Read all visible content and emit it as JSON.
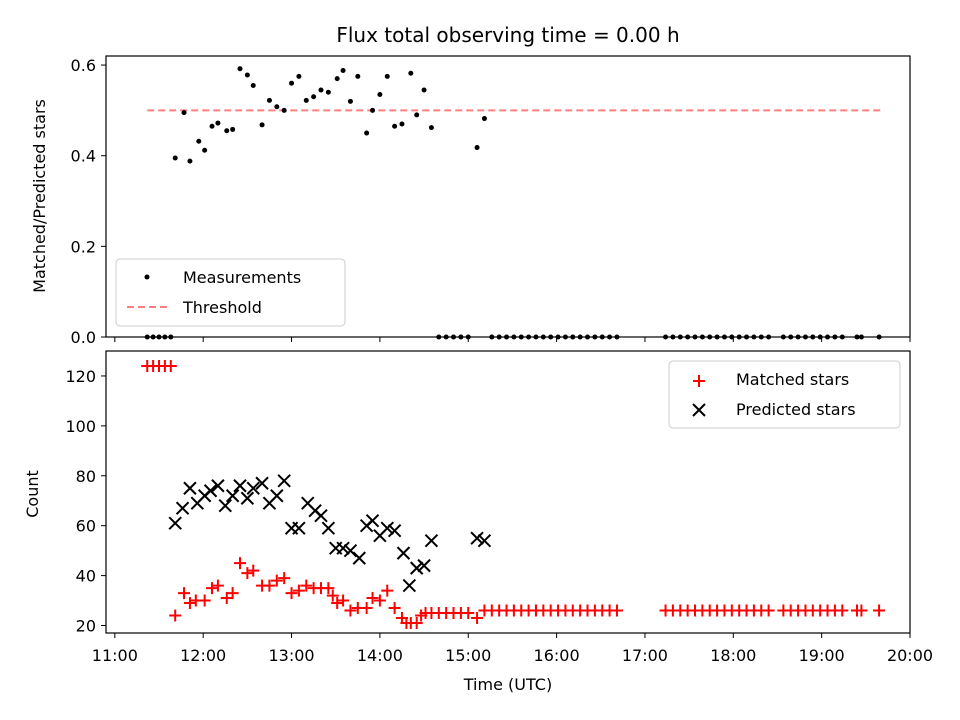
{
  "chart_data": [
    {
      "type": "scatter",
      "title": "Flux total observing time = 0.00 h",
      "xlabel": "",
      "ylabel": "Matched/Predicted stars",
      "xlim": [
        "10:54",
        "20:00"
      ],
      "ylim": [
        0,
        0.62
      ],
      "yticks": [
        "0.0",
        "0.2",
        "0.4",
        "0.6"
      ],
      "legend": {
        "placement": "lower-left",
        "entries": [
          "Measurements",
          "Threshold"
        ]
      },
      "colors": {
        "measurements": "#000000",
        "threshold": "#ff7f7f"
      },
      "threshold": {
        "name": "Threshold",
        "value": 0.5,
        "x_start": "11:22",
        "x_end": "19:40"
      },
      "series": [
        {
          "name": "Measurements",
          "points": [
            [
              "11:41",
              0.395
            ],
            [
              "11:47",
              0.495
            ],
            [
              "11:51",
              0.388
            ],
            [
              "11:57",
              0.432
            ],
            [
              "12:01",
              0.412
            ],
            [
              "12:06",
              0.465
            ],
            [
              "12:10",
              0.472
            ],
            [
              "12:16",
              0.455
            ],
            [
              "12:20",
              0.458
            ],
            [
              "12:25",
              0.592
            ],
            [
              "12:30",
              0.578
            ],
            [
              "12:34",
              0.555
            ],
            [
              "12:40",
              0.468
            ],
            [
              "12:45",
              0.522
            ],
            [
              "12:50",
              0.508
            ],
            [
              "12:55",
              0.5
            ],
            [
              "13:00",
              0.56
            ],
            [
              "13:05",
              0.575
            ],
            [
              "13:10",
              0.522
            ],
            [
              "13:15",
              0.53
            ],
            [
              "13:20",
              0.545
            ],
            [
              "13:25",
              0.54
            ],
            [
              "13:31",
              0.57
            ],
            [
              "13:35",
              0.588
            ],
            [
              "13:40",
              0.52
            ],
            [
              "13:45",
              0.575
            ],
            [
              "13:51",
              0.45
            ],
            [
              "13:55",
              0.5
            ],
            [
              "14:00",
              0.535
            ],
            [
              "14:05",
              0.575
            ],
            [
              "14:10",
              0.465
            ],
            [
              "14:15",
              0.47
            ],
            [
              "14:21",
              0.582
            ],
            [
              "14:25",
              0.49
            ],
            [
              "14:30",
              0.545
            ],
            [
              "14:35",
              0.462
            ],
            [
              "15:06",
              0.418
            ],
            [
              "15:11",
              0.482
            ],
            [
              "11:22",
              0
            ],
            [
              "11:26",
              0
            ],
            [
              "11:30",
              0
            ],
            [
              "11:34",
              0
            ],
            [
              "11:38",
              0
            ],
            [
              "14:40",
              0
            ],
            [
              "14:45",
              0
            ],
            [
              "14:50",
              0
            ],
            [
              "14:55",
              0
            ],
            [
              "15:00",
              0
            ],
            [
              "15:16",
              0
            ],
            [
              "15:21",
              0
            ],
            [
              "15:26",
              0
            ],
            [
              "15:31",
              0
            ],
            [
              "15:36",
              0
            ],
            [
              "15:41",
              0
            ],
            [
              "15:46",
              0
            ],
            [
              "15:51",
              0
            ],
            [
              "15:56",
              0
            ],
            [
              "16:01",
              0
            ],
            [
              "16:06",
              0
            ],
            [
              "16:11",
              0
            ],
            [
              "16:16",
              0
            ],
            [
              "16:21",
              0
            ],
            [
              "16:26",
              0
            ],
            [
              "16:31",
              0
            ],
            [
              "16:36",
              0
            ],
            [
              "16:41",
              0
            ],
            [
              "17:14",
              0
            ],
            [
              "17:19",
              0
            ],
            [
              "17:24",
              0
            ],
            [
              "17:29",
              0
            ],
            [
              "17:34",
              0
            ],
            [
              "17:39",
              0
            ],
            [
              "17:44",
              0
            ],
            [
              "17:49",
              0
            ],
            [
              "17:54",
              0
            ],
            [
              "17:59",
              0
            ],
            [
              "18:04",
              0
            ],
            [
              "18:09",
              0
            ],
            [
              "18:14",
              0
            ],
            [
              "18:19",
              0
            ],
            [
              "18:24",
              0
            ],
            [
              "18:34",
              0
            ],
            [
              "18:39",
              0
            ],
            [
              "18:44",
              0
            ],
            [
              "18:49",
              0
            ],
            [
              "18:54",
              0
            ],
            [
              "18:59",
              0
            ],
            [
              "19:04",
              0
            ],
            [
              "19:09",
              0
            ],
            [
              "19:14",
              0
            ],
            [
              "19:24",
              0
            ],
            [
              "19:27",
              0
            ],
            [
              "19:39",
              0
            ]
          ]
        }
      ]
    },
    {
      "type": "scatter",
      "title": "",
      "xlabel": "Time (UTC)",
      "ylabel": "Count",
      "xlim": [
        "10:54",
        "20:00"
      ],
      "ylim": [
        17,
        130
      ],
      "xticks": [
        "11:00",
        "12:00",
        "13:00",
        "14:00",
        "15:00",
        "16:00",
        "17:00",
        "18:00",
        "19:00",
        "20:00"
      ],
      "yticks": [
        "20",
        "40",
        "60",
        "80",
        "100",
        "120"
      ],
      "legend": {
        "placement": "top-right",
        "entries": [
          "Matched stars",
          "Predicted stars"
        ]
      },
      "colors": {
        "matched": "#ff0000",
        "predicted": "#000000"
      },
      "series": [
        {
          "name": "Matched stars",
          "marker": "plus",
          "points": [
            [
              "11:22",
              124
            ],
            [
              "11:26",
              124
            ],
            [
              "11:30",
              124
            ],
            [
              "11:34",
              124
            ],
            [
              "11:38",
              124
            ],
            [
              "11:41",
              24
            ],
            [
              "11:47",
              33
            ],
            [
              "11:51",
              29
            ],
            [
              "11:55",
              30
            ],
            [
              "12:01",
              30
            ],
            [
              "12:06",
              35
            ],
            [
              "12:10",
              36
            ],
            [
              "12:16",
              31
            ],
            [
              "12:20",
              33
            ],
            [
              "12:25",
              45
            ],
            [
              "12:30",
              41
            ],
            [
              "12:34",
              42
            ],
            [
              "12:40",
              36
            ],
            [
              "12:45",
              36
            ],
            [
              "12:50",
              38
            ],
            [
              "12:55",
              39
            ],
            [
              "13:00",
              33
            ],
            [
              "13:05",
              34
            ],
            [
              "13:10",
              36
            ],
            [
              "13:15",
              35
            ],
            [
              "13:20",
              35
            ],
            [
              "13:25",
              35
            ],
            [
              "13:28",
              32
            ],
            [
              "13:31",
              29
            ],
            [
              "13:35",
              30
            ],
            [
              "13:40",
              26
            ],
            [
              "13:45",
              27
            ],
            [
              "13:51",
              27
            ],
            [
              "13:55",
              31
            ],
            [
              "14:00",
              30
            ],
            [
              "14:05",
              34
            ],
            [
              "14:10",
              27
            ],
            [
              "14:15",
              23
            ],
            [
              "14:18",
              21
            ],
            [
              "14:21",
              21
            ],
            [
              "14:25",
              21
            ],
            [
              "14:28",
              24
            ],
            [
              "14:31",
              25
            ],
            [
              "14:35",
              25
            ],
            [
              "14:40",
              25
            ],
            [
              "14:45",
              25
            ],
            [
              "14:50",
              25
            ],
            [
              "14:55",
              25
            ],
            [
              "15:00",
              25
            ],
            [
              "15:06",
              23
            ],
            [
              "15:11",
              26
            ],
            [
              "15:16",
              26
            ],
            [
              "15:21",
              26
            ],
            [
              "15:26",
              26
            ],
            [
              "15:31",
              26
            ],
            [
              "15:36",
              26
            ],
            [
              "15:41",
              26
            ],
            [
              "15:46",
              26
            ],
            [
              "15:51",
              26
            ],
            [
              "15:56",
              26
            ],
            [
              "16:01",
              26
            ],
            [
              "16:06",
              26
            ],
            [
              "16:11",
              26
            ],
            [
              "16:16",
              26
            ],
            [
              "16:21",
              26
            ],
            [
              "16:26",
              26
            ],
            [
              "16:31",
              26
            ],
            [
              "16:36",
              26
            ],
            [
              "16:41",
              26
            ],
            [
              "17:14",
              26
            ],
            [
              "17:19",
              26
            ],
            [
              "17:24",
              26
            ],
            [
              "17:29",
              26
            ],
            [
              "17:34",
              26
            ],
            [
              "17:39",
              26
            ],
            [
              "17:44",
              26
            ],
            [
              "17:49",
              26
            ],
            [
              "17:54",
              26
            ],
            [
              "17:59",
              26
            ],
            [
              "18:04",
              26
            ],
            [
              "18:09",
              26
            ],
            [
              "18:14",
              26
            ],
            [
              "18:19",
              26
            ],
            [
              "18:24",
              26
            ],
            [
              "18:34",
              26
            ],
            [
              "18:39",
              26
            ],
            [
              "18:44",
              26
            ],
            [
              "18:49",
              26
            ],
            [
              "18:54",
              26
            ],
            [
              "18:59",
              26
            ],
            [
              "19:04",
              26
            ],
            [
              "19:09",
              26
            ],
            [
              "19:14",
              26
            ],
            [
              "19:24",
              26
            ],
            [
              "19:27",
              26
            ],
            [
              "19:39",
              26
            ]
          ]
        },
        {
          "name": "Predicted stars",
          "marker": "x",
          "points": [
            [
              "11:41",
              61
            ],
            [
              "11:46",
              67
            ],
            [
              "11:51",
              75
            ],
            [
              "11:56",
              69
            ],
            [
              "12:01",
              72
            ],
            [
              "12:05",
              74
            ],
            [
              "12:10",
              76
            ],
            [
              "12:15",
              68
            ],
            [
              "12:20",
              72
            ],
            [
              "12:25",
              76
            ],
            [
              "12:30",
              71
            ],
            [
              "12:34",
              75
            ],
            [
              "12:40",
              77
            ],
            [
              "12:45",
              69
            ],
            [
              "12:50",
              72
            ],
            [
              "12:55",
              78
            ],
            [
              "13:00",
              59
            ],
            [
              "13:05",
              59
            ],
            [
              "13:11",
              69
            ],
            [
              "13:16",
              66
            ],
            [
              "13:20",
              64
            ],
            [
              "13:25",
              59
            ],
            [
              "13:30",
              51
            ],
            [
              "13:35",
              51
            ],
            [
              "13:40",
              50
            ],
            [
              "13:46",
              47
            ],
            [
              "13:51",
              60
            ],
            [
              "13:55",
              62
            ],
            [
              "14:00",
              56
            ],
            [
              "14:05",
              59
            ],
            [
              "14:10",
              58
            ],
            [
              "14:16",
              49
            ],
            [
              "14:20",
              36
            ],
            [
              "14:25",
              43
            ],
            [
              "14:30",
              44
            ],
            [
              "14:35",
              54
            ],
            [
              "15:06",
              55
            ],
            [
              "15:11",
              54
            ]
          ]
        }
      ]
    }
  ]
}
